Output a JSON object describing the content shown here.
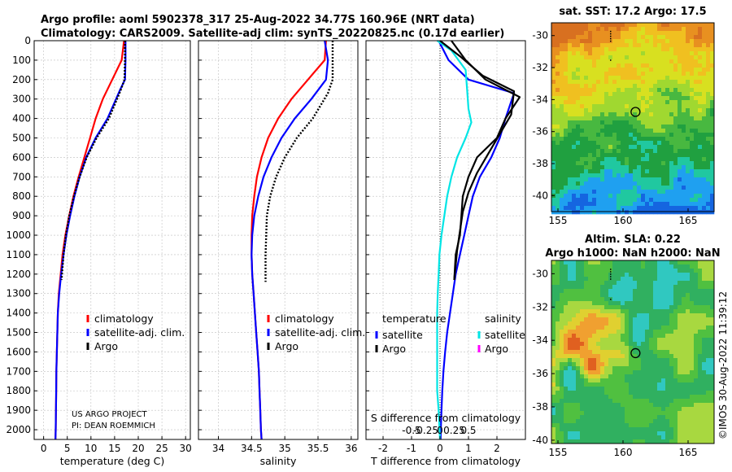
{
  "header": {
    "line1": "Argo profile: aoml 5902378_317 25-Aug-2022 34.77S 160.96E (NRT data)",
    "line2": "Climatology: CARS2009. Satellite-adj clim: synTS_20220825.nc (0.17d earlier)"
  },
  "colors": {
    "climatology": "#ff0000",
    "satellite_adj": "#0000ff",
    "argo": "#000000",
    "satellite_cyan": "#00e5e5",
    "argo_magenta": "#ff00ff",
    "grid": "#bfbfbf"
  },
  "chart_data": [
    {
      "id": "temperature",
      "type": "line",
      "xlabel": "temperature (deg C)",
      "ylabel": "",
      "xlim": [
        -2,
        31
      ],
      "ylim": [
        0,
        2050
      ],
      "xticks": [
        0,
        5,
        10,
        15,
        20,
        25,
        30
      ],
      "yticks": [
        0,
        100,
        200,
        300,
        400,
        500,
        600,
        700,
        800,
        900,
        1000,
        1100,
        1200,
        1300,
        1400,
        1500,
        1600,
        1700,
        1800,
        1900,
        2000
      ],
      "grid": true,
      "legend": [
        "climatology",
        "satellite-adj. clim.",
        "Argo"
      ],
      "legend_position": "bottom-center",
      "annotation": [
        "US ARGO PROJECT",
        "PI: DEAN ROEMMICH"
      ],
      "series": [
        {
          "name": "climatology",
          "style": "solid",
          "color_key": "climatology",
          "x": [
            17.0,
            16.5,
            14.5,
            12.5,
            11.0,
            9.8,
            8.6,
            7.4,
            6.3,
            5.4,
            4.6,
            4.0,
            3.6,
            3.2,
            3.0,
            2.9,
            2.8,
            2.7,
            2.65,
            2.6,
            2.55,
            2.5
          ],
          "y": [
            0,
            100,
            200,
            300,
            400,
            500,
            600,
            700,
            800,
            900,
            1000,
            1100,
            1200,
            1300,
            1400,
            1500,
            1600,
            1700,
            1800,
            1900,
            2000,
            2050
          ]
        },
        {
          "name": "satellite-adj. clim.",
          "style": "solid",
          "color_key": "satellite_adj",
          "x": [
            17.3,
            17.3,
            17.2,
            16.2,
            13.5,
            11.0,
            9.0,
            7.6,
            6.5,
            5.6,
            4.8,
            4.2,
            3.7,
            3.3,
            3.0,
            2.9,
            2.8,
            2.7,
            2.65,
            2.6,
            2.55,
            2.5
          ],
          "y": [
            0,
            100,
            200,
            250,
            400,
            500,
            600,
            700,
            800,
            900,
            1000,
            1100,
            1200,
            1300,
            1400,
            1500,
            1600,
            1700,
            1800,
            1900,
            2000,
            2050
          ]
        },
        {
          "name": "Argo",
          "style": "dotted",
          "color_key": "argo",
          "x": [
            17.2,
            17.2,
            17.1,
            16.2,
            13.8,
            11.2,
            9.1,
            7.6,
            6.4,
            5.4,
            4.7,
            4.2,
            3.8
          ],
          "y": [
            0,
            100,
            200,
            260,
            400,
            500,
            600,
            700,
            800,
            900,
            1000,
            1100,
            1230
          ]
        }
      ]
    },
    {
      "id": "salinity",
      "type": "line",
      "xlabel": "salinity",
      "ylabel": "",
      "xlim": [
        33.7,
        36.1
      ],
      "ylim": [
        0,
        2050
      ],
      "xticks": [
        34,
        34.5,
        35,
        35.5,
        36
      ],
      "grid": true,
      "legend": [
        "climatology",
        "satellite-adj. clim.",
        "Argo"
      ],
      "legend_position": "bottom-center",
      "series": [
        {
          "name": "climatology",
          "style": "solid",
          "color_key": "climatology",
          "x": [
            35.62,
            35.6,
            35.35,
            35.1,
            34.9,
            34.75,
            34.65,
            34.58,
            34.54,
            34.51,
            34.5,
            34.5,
            34.51,
            34.53,
            34.55,
            34.57,
            34.59,
            34.61,
            34.62,
            34.63,
            34.64,
            34.65
          ],
          "y": [
            0,
            100,
            200,
            300,
            400,
            500,
            600,
            700,
            800,
            900,
            1000,
            1100,
            1200,
            1300,
            1400,
            1500,
            1600,
            1700,
            1800,
            1900,
            2000,
            2050
          ]
        },
        {
          "name": "satellite-adj. clim.",
          "style": "solid",
          "color_key": "satellite_adj",
          "x": [
            35.6,
            35.65,
            35.62,
            35.4,
            35.15,
            34.95,
            34.8,
            34.68,
            34.6,
            34.54,
            34.51,
            34.5,
            34.51,
            34.53,
            34.55,
            34.57,
            34.59,
            34.61,
            34.62,
            34.63,
            34.64,
            34.65
          ],
          "y": [
            0,
            100,
            200,
            300,
            400,
            500,
            600,
            700,
            800,
            900,
            1000,
            1100,
            1200,
            1300,
            1400,
            1500,
            1600,
            1700,
            1800,
            1900,
            2000,
            2050
          ]
        },
        {
          "name": "Argo",
          "style": "dotted",
          "color_key": "argo",
          "x": [
            35.72,
            35.72,
            35.72,
            35.65,
            35.42,
            35.18,
            35.0,
            34.87,
            34.78,
            34.73,
            34.72,
            34.71,
            34.71
          ],
          "y": [
            0,
            100,
            200,
            270,
            400,
            500,
            600,
            700,
            800,
            900,
            1000,
            1100,
            1240
          ]
        }
      ]
    },
    {
      "id": "difference",
      "type": "line",
      "title_bottom": "S difference from climatology",
      "xlabel": "T difference from climatology",
      "xlim": [
        -2.6,
        3.0
      ],
      "ylim": [
        0,
        2050
      ],
      "xticks": [
        -2,
        -1,
        0,
        1,
        2
      ],
      "top_ticks": [
        {
          "value": -1.0,
          "label": "-0.5"
        },
        {
          "value": -0.5,
          "label": "-0.25"
        },
        {
          "value": 0,
          "label": "0"
        },
        {
          "value": 0.5,
          "label": "0.25"
        },
        {
          "value": 1.0,
          "label": "0.5"
        }
      ],
      "grid": true,
      "legend_groups": [
        {
          "title": "temperature",
          "items": [
            "satellite",
            "Argo"
          ]
        },
        {
          "title": "salinity",
          "items": [
            "satellite",
            "Argo"
          ]
        }
      ],
      "legend_position": "bottom-center",
      "series": [
        {
          "name": "temperature satellite",
          "style": "solid",
          "color_key": "satellite_adj",
          "x": [
            -0.05,
            0.3,
            1.0,
            2.6,
            2.3,
            2.1,
            1.8,
            1.4,
            1.15,
            1.0,
            0.85,
            0.7,
            0.55,
            0.45,
            0.35,
            0.25,
            0.18,
            0.12,
            0.08,
            0.05,
            0.03,
            0.02
          ],
          "y": [
            0,
            100,
            200,
            270,
            400,
            500,
            600,
            700,
            800,
            900,
            1000,
            1100,
            1200,
            1300,
            1400,
            1500,
            1600,
            1700,
            1800,
            1900,
            2000,
            2050
          ]
        },
        {
          "name": "temperature Argo",
          "style": "solid",
          "color_key": "argo",
          "x": [
            0.4,
            0.9,
            1.6,
            2.8,
            2.3,
            2.0,
            1.3,
            1.0,
            0.8,
            0.75,
            0.7,
            0.55,
            0.5
          ],
          "y": [
            0,
            100,
            200,
            290,
            400,
            500,
            600,
            700,
            800,
            900,
            1000,
            1100,
            1230
          ]
        },
        {
          "name": "salinity satellite",
          "style": "solid",
          "color_key": "satellite_cyan",
          "x": [
            -0.1,
            0.4,
            0.9,
            0.95,
            1.0,
            1.1,
            0.9,
            0.6,
            0.4,
            0.25,
            0.15,
            0.05,
            -0.02,
            -0.05,
            -0.08,
            -0.1,
            -0.1,
            -0.1,
            -0.1,
            -0.1,
            -0.05,
            0
          ],
          "y": [
            0,
            50,
            150,
            250,
            350,
            420,
            500,
            600,
            700,
            800,
            900,
            1000,
            1100,
            1200,
            1300,
            1400,
            1500,
            1600,
            1700,
            1800,
            1900,
            2050
          ]
        },
        {
          "name": "salinity Argo",
          "style": "solid",
          "color_key": "argo",
          "x": [
            0.0,
            0.7,
            1.5,
            2.6,
            2.5,
            2.1,
            1.7,
            1.3,
            1.0,
            0.8,
            0.7,
            0.6,
            0.5
          ],
          "y": [
            0,
            80,
            180,
            260,
            380,
            480,
            580,
            680,
            780,
            880,
            980,
            1080,
            1230
          ]
        }
      ]
    },
    {
      "id": "sst_map",
      "type": "heatmap",
      "title": "sat. SST: 17.2 Argo: 17.5",
      "xlim": [
        154.5,
        167
      ],
      "ylim": [
        -41,
        -29.2
      ],
      "xticks": [
        155,
        160,
        165
      ],
      "yticks": [
        -30,
        -32,
        -34,
        -36,
        -38,
        -40
      ],
      "marker": {
        "lon": 160.96,
        "lat": -34.77
      },
      "palette": [
        "#1565e0",
        "#1fa0f0",
        "#20c8a0",
        "#20a040",
        "#48b840",
        "#a0d830",
        "#d8e020",
        "#f0c020",
        "#e89020",
        "#d87020"
      ]
    },
    {
      "id": "sla_map",
      "type": "heatmap",
      "title": "Altim. SLA: 0.22",
      "subtitle": "Argo h1000: NaN h2000: NaN",
      "xlim": [
        154.5,
        167
      ],
      "ylim": [
        -40.2,
        -29.2
      ],
      "xticks": [
        155,
        160,
        165
      ],
      "yticks": [
        -30,
        -32,
        -34,
        -36,
        -38,
        -40
      ],
      "marker": {
        "lon": 160.96,
        "lat": -34.77
      },
      "palette": [
        "#2060d8",
        "#30a0e8",
        "#30c8c0",
        "#30b060",
        "#50c040",
        "#a8d840",
        "#e0d030",
        "#f0a030",
        "#e06020"
      ]
    }
  ],
  "watermark": "©IMOS 30-Aug-2022 11:39:12"
}
